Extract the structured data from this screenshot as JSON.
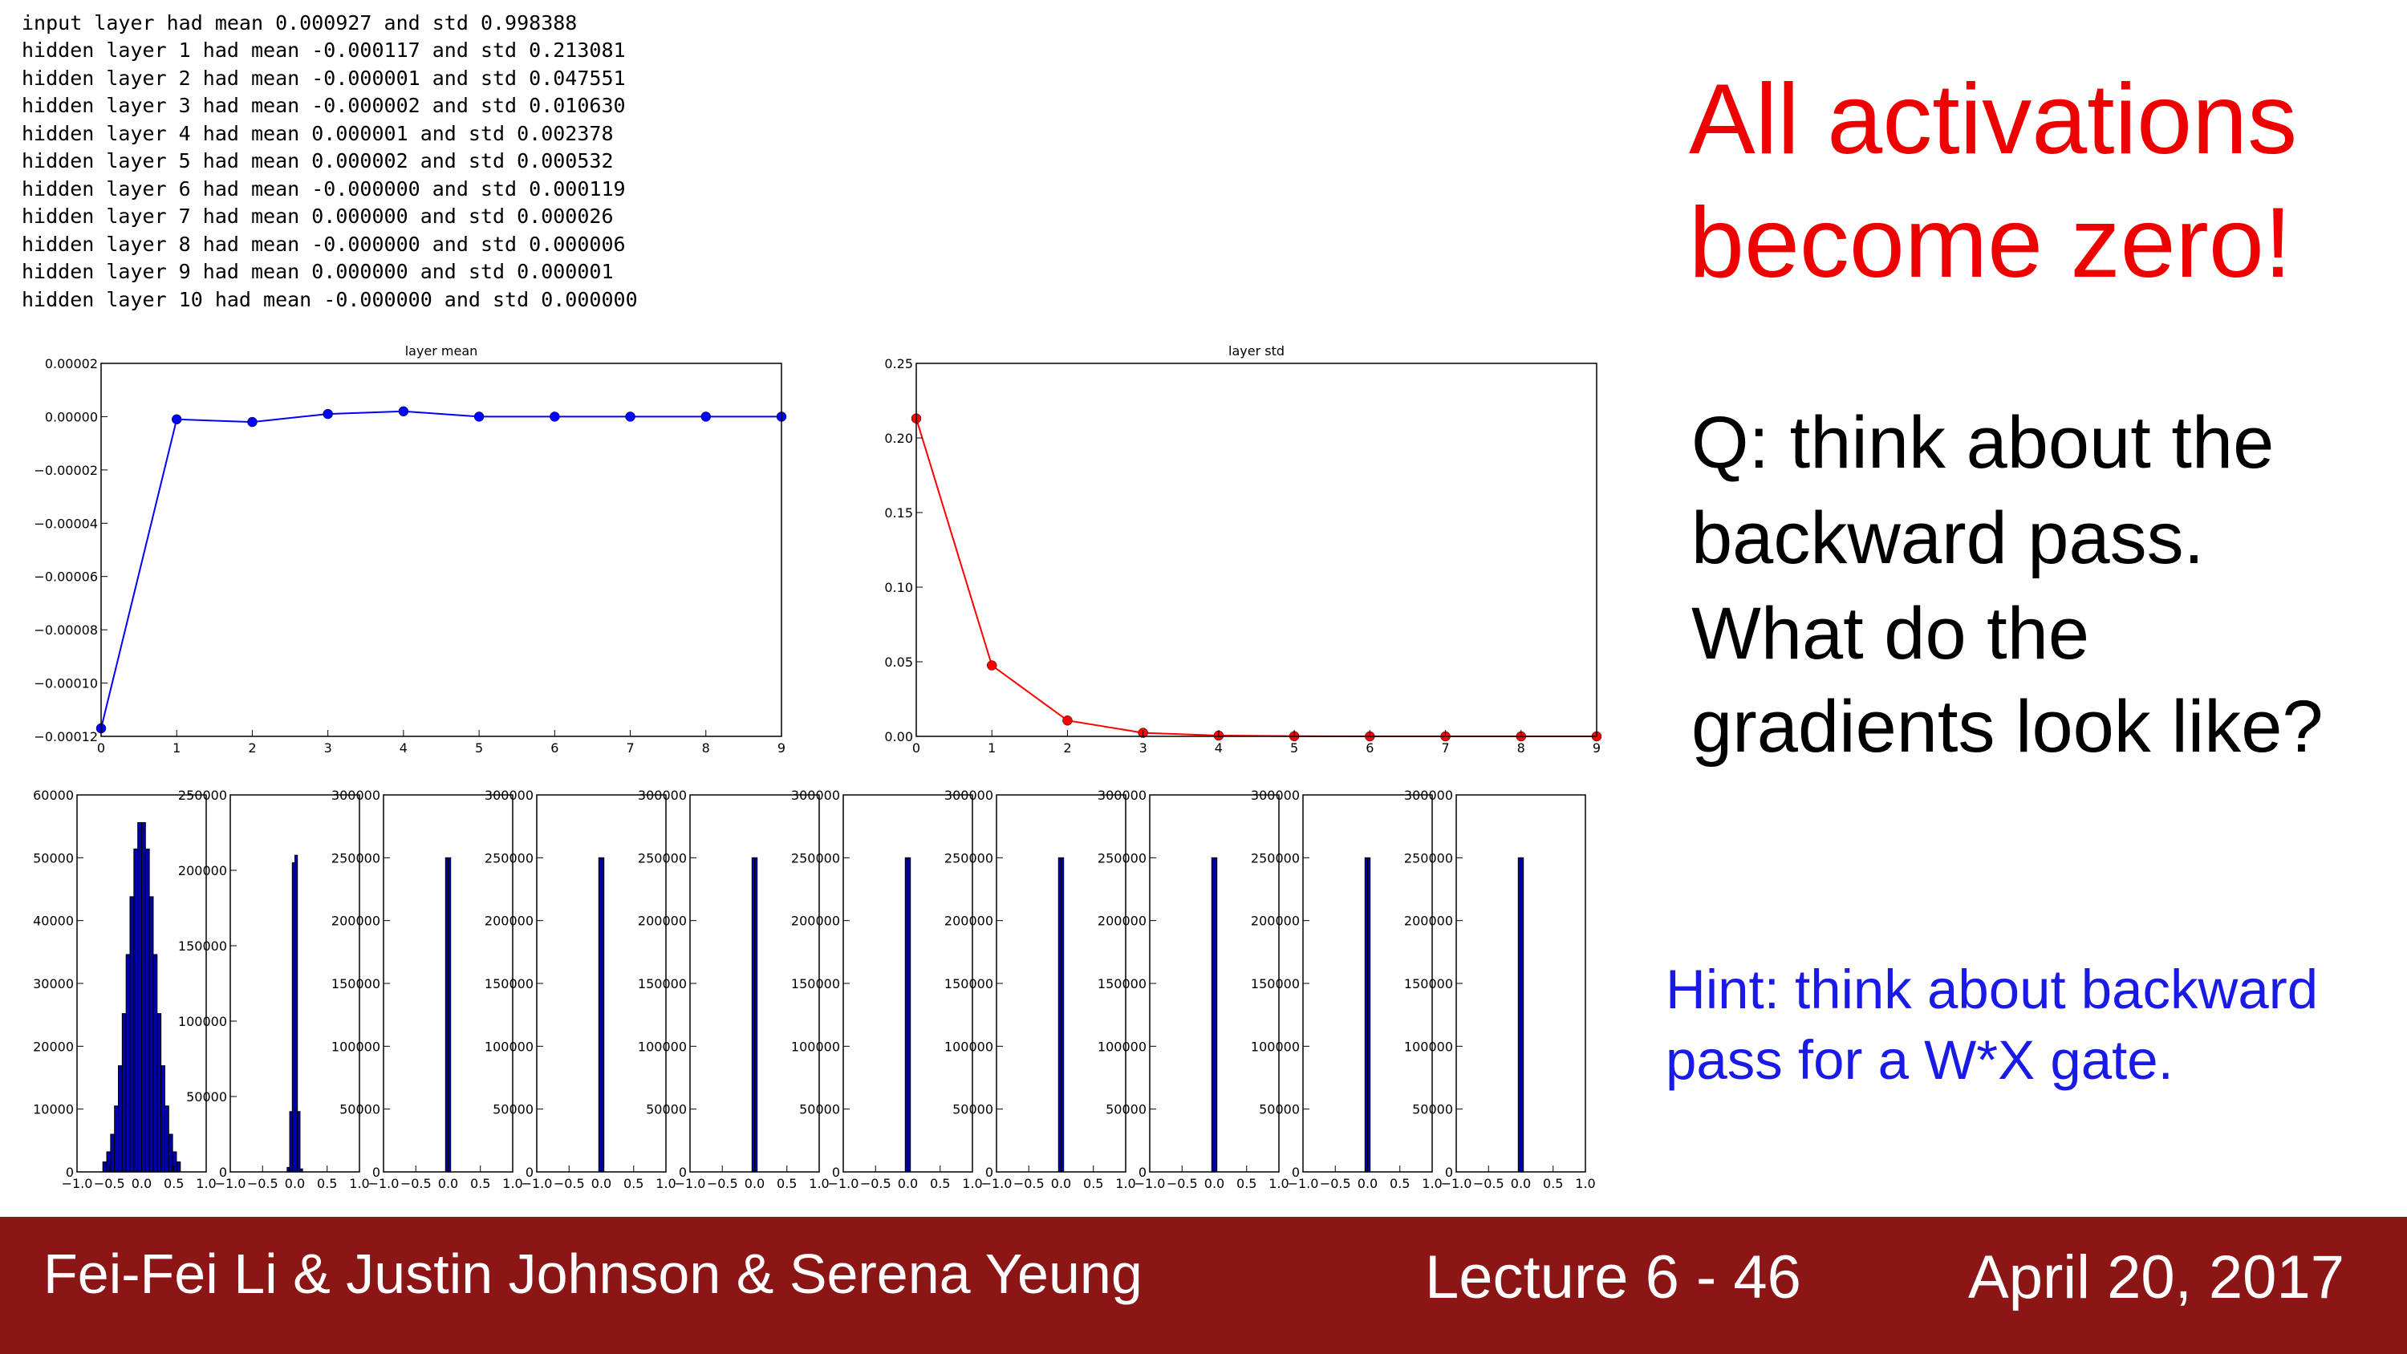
{
  "console": {
    "lines": [
      "input layer had mean 0.000927 and std 0.998388",
      "hidden layer 1 had mean -0.000117 and std 0.213081",
      "hidden layer 2 had mean -0.000001 and std 0.047551",
      "hidden layer 3 had mean -0.000002 and std 0.010630",
      "hidden layer 4 had mean 0.000001 and std 0.002378",
      "hidden layer 5 had mean 0.000002 and std 0.000532",
      "hidden layer 6 had mean -0.000000 and std 0.000119",
      "hidden layer 7 had mean 0.000000 and std 0.000026",
      "hidden layer 8 had mean -0.000000 and std 0.000006",
      "hidden layer 9 had mean 0.000000 and std 0.000001",
      "hidden layer 10 had mean -0.000000 and std 0.000000"
    ]
  },
  "slide": {
    "headline": [
      "All activations",
      "become zero!"
    ],
    "question": [
      "Q: think about the",
      "backward pass.",
      "What do the",
      "gradients look like?"
    ],
    "hint": [
      "Hint: think about backward",
      "pass for a W*X gate."
    ]
  },
  "footer": {
    "authors": "Fei-Fei Li & Justin Johnson & Serena Yeung",
    "lecture": "Lecture 6 - 46",
    "date": "April 20, 2017"
  },
  "chart_data": [
    {
      "type": "line",
      "title": "layer mean",
      "color": "#0000ff",
      "x": [
        0,
        1,
        2,
        3,
        4,
        5,
        6,
        7,
        8,
        9
      ],
      "values": [
        -0.000117,
        -1e-06,
        -2e-06,
        1e-06,
        2e-06,
        0,
        0,
        0,
        0,
        0
      ],
      "xlim": [
        0,
        9
      ],
      "xticks": [
        0,
        1,
        2,
        3,
        4,
        5,
        6,
        7,
        8,
        9
      ],
      "ylim": [
        -0.00012,
        2e-05
      ],
      "yticks": [
        {
          "value": -0.00012,
          "label": "−0.00012"
        },
        {
          "value": -0.0001,
          "label": "−0.00010"
        },
        {
          "value": -8e-05,
          "label": "−0.00008"
        },
        {
          "value": -6e-05,
          "label": "−0.00006"
        },
        {
          "value": -4e-05,
          "label": "−0.00004"
        },
        {
          "value": -2e-05,
          "label": "−0.00002"
        },
        {
          "value": 0,
          "label": "0.00000"
        },
        {
          "value": 2e-05,
          "label": "0.00002"
        }
      ]
    },
    {
      "type": "line",
      "title": "layer std",
      "color": "#ff0000",
      "x": [
        0,
        1,
        2,
        3,
        4,
        5,
        6,
        7,
        8,
        9
      ],
      "values": [
        0.213081,
        0.047551,
        0.01063,
        0.002378,
        0.000532,
        0.000119,
        2.6e-05,
        6e-06,
        1e-06,
        0
      ],
      "xlim": [
        0,
        9
      ],
      "xticks": [
        0,
        1,
        2,
        3,
        4,
        5,
        6,
        7,
        8,
        9
      ],
      "ylim": [
        0,
        0.25
      ],
      "yticks": [
        {
          "value": 0,
          "label": "0.00"
        },
        {
          "value": 0.05,
          "label": "0.05"
        },
        {
          "value": 0.1,
          "label": "0.10"
        },
        {
          "value": 0.15,
          "label": "0.15"
        },
        {
          "value": 0.2,
          "label": "0.20"
        },
        {
          "value": 0.25,
          "label": "0.25"
        }
      ]
    },
    {
      "type": "histogram",
      "color": "#0000aa",
      "bins": [
        -0.6,
        -0.54,
        -0.48,
        -0.42,
        -0.36,
        -0.3,
        -0.24,
        -0.18,
        -0.12,
        -0.06,
        0,
        0.06,
        0.12,
        0.18,
        0.24,
        0.3,
        0.36,
        0.42,
        0.48,
        0.54,
        0.6
      ],
      "values": [
        1600,
        3200,
        6000,
        10500,
        16900,
        25200,
        34600,
        43800,
        51400,
        55600,
        55600,
        51400,
        43800,
        34600,
        25200,
        16900,
        10500,
        6000,
        3200,
        1600
      ],
      "xlim": [
        -1,
        1
      ],
      "xticks": [
        {
          "value": -1,
          "label": "−1.0"
        },
        {
          "value": -0.5,
          "label": "−0.5"
        },
        {
          "value": 0,
          "label": "0.0"
        },
        {
          "value": 0.5,
          "label": "0.5"
        },
        {
          "value": 1,
          "label": "1.0"
        }
      ],
      "ylim": [
        0,
        60000
      ],
      "yticks": [
        0,
        10000,
        20000,
        30000,
        40000,
        50000,
        60000
      ]
    },
    {
      "type": "histogram",
      "color": "#0000aa",
      "bins": [
        -0.12,
        -0.08,
        -0.04,
        0,
        0.04,
        0.08,
        0.12
      ],
      "values": [
        3000,
        40000,
        205000,
        210000,
        40000,
        2000
      ],
      "xlim": [
        -1,
        1
      ],
      "xticks": [
        {
          "value": -1,
          "label": "−1.0"
        },
        {
          "value": -0.5,
          "label": "−0.5"
        },
        {
          "value": 0,
          "label": "0.0"
        },
        {
          "value": 0.5,
          "label": "0.5"
        },
        {
          "value": 1,
          "label": "1.0"
        }
      ],
      "ylim": [
        0,
        250000
      ],
      "yticks": [
        0,
        50000,
        100000,
        150000,
        200000,
        250000
      ]
    },
    {
      "type": "histogram",
      "color": "#0000aa",
      "bins": [
        -0.04,
        0,
        0.04
      ],
      "values": [
        250000,
        250000
      ],
      "xlim": [
        -1,
        1
      ],
      "xticks": [
        {
          "value": -1,
          "label": "−1.0"
        },
        {
          "value": -0.5,
          "label": "−0.5"
        },
        {
          "value": 0,
          "label": "0.0"
        },
        {
          "value": 0.5,
          "label": "0.5"
        },
        {
          "value": 1,
          "label": "1.0"
        }
      ],
      "ylim": [
        0,
        300000
      ],
      "yticks": [
        0,
        50000,
        100000,
        150000,
        200000,
        250000,
        300000
      ]
    },
    {
      "type": "histogram",
      "color": "#0000aa",
      "bins": [
        -0.04,
        0,
        0.04
      ],
      "values": [
        250000,
        250000
      ],
      "xlim": [
        -1,
        1
      ],
      "xticks": [
        {
          "value": -1,
          "label": "−1.0"
        },
        {
          "value": -0.5,
          "label": "−0.5"
        },
        {
          "value": 0,
          "label": "0.0"
        },
        {
          "value": 0.5,
          "label": "0.5"
        },
        {
          "value": 1,
          "label": "1.0"
        }
      ],
      "ylim": [
        0,
        300000
      ],
      "yticks": [
        0,
        50000,
        100000,
        150000,
        200000,
        250000,
        300000
      ]
    },
    {
      "type": "histogram",
      "color": "#0000aa",
      "bins": [
        -0.04,
        0,
        0.04
      ],
      "values": [
        250000,
        250000
      ],
      "xlim": [
        -1,
        1
      ],
      "xticks": [
        {
          "value": -1,
          "label": "−1.0"
        },
        {
          "value": -0.5,
          "label": "−0.5"
        },
        {
          "value": 0,
          "label": "0.0"
        },
        {
          "value": 0.5,
          "label": "0.5"
        },
        {
          "value": 1,
          "label": "1.0"
        }
      ],
      "ylim": [
        0,
        300000
      ],
      "yticks": [
        0,
        50000,
        100000,
        150000,
        200000,
        250000,
        300000
      ]
    },
    {
      "type": "histogram",
      "color": "#0000aa",
      "bins": [
        -0.04,
        0,
        0.04
      ],
      "values": [
        250000,
        250000
      ],
      "xlim": [
        -1,
        1
      ],
      "xticks": [
        {
          "value": -1,
          "label": "−1.0"
        },
        {
          "value": -0.5,
          "label": "−0.5"
        },
        {
          "value": 0,
          "label": "0.0"
        },
        {
          "value": 0.5,
          "label": "0.5"
        },
        {
          "value": 1,
          "label": "1.0"
        }
      ],
      "ylim": [
        0,
        300000
      ],
      "yticks": [
        0,
        50000,
        100000,
        150000,
        200000,
        250000,
        300000
      ]
    },
    {
      "type": "histogram",
      "color": "#0000aa",
      "bins": [
        -0.04,
        0,
        0.04
      ],
      "values": [
        250000,
        250000
      ],
      "xlim": [
        -1,
        1
      ],
      "xticks": [
        {
          "value": -1,
          "label": "−1.0"
        },
        {
          "value": -0.5,
          "label": "−0.5"
        },
        {
          "value": 0,
          "label": "0.0"
        },
        {
          "value": 0.5,
          "label": "0.5"
        },
        {
          "value": 1,
          "label": "1.0"
        }
      ],
      "ylim": [
        0,
        300000
      ],
      "yticks": [
        0,
        50000,
        100000,
        150000,
        200000,
        250000,
        300000
      ]
    },
    {
      "type": "histogram",
      "color": "#0000aa",
      "bins": [
        -0.04,
        0,
        0.04
      ],
      "values": [
        250000,
        250000
      ],
      "xlim": [
        -1,
        1
      ],
      "xticks": [
        {
          "value": -1,
          "label": "−1.0"
        },
        {
          "value": -0.5,
          "label": "−0.5"
        },
        {
          "value": 0,
          "label": "0.0"
        },
        {
          "value": 0.5,
          "label": "0.5"
        },
        {
          "value": 1,
          "label": "1.0"
        }
      ],
      "ylim": [
        0,
        300000
      ],
      "yticks": [
        0,
        50000,
        100000,
        150000,
        200000,
        250000,
        300000
      ]
    },
    {
      "type": "histogram",
      "color": "#0000aa",
      "bins": [
        -0.04,
        0,
        0.04
      ],
      "values": [
        250000,
        250000
      ],
      "xlim": [
        -1,
        1
      ],
      "xticks": [
        {
          "value": -1,
          "label": "−1.0"
        },
        {
          "value": -0.5,
          "label": "−0.5"
        },
        {
          "value": 0,
          "label": "0.0"
        },
        {
          "value": 0.5,
          "label": "0.5"
        },
        {
          "value": 1,
          "label": "1.0"
        }
      ],
      "ylim": [
        0,
        300000
      ],
      "yticks": [
        0,
        50000,
        100000,
        150000,
        200000,
        250000,
        300000
      ]
    },
    {
      "type": "histogram",
      "color": "#0000aa",
      "bins": [
        -0.04,
        0,
        0.04
      ],
      "values": [
        250000,
        250000
      ],
      "xlim": [
        -1,
        1
      ],
      "xticks": [
        {
          "value": -1,
          "label": "−1.0"
        },
        {
          "value": -0.5,
          "label": "−0.5"
        },
        {
          "value": 0,
          "label": "0.0"
        },
        {
          "value": 0.5,
          "label": "0.5"
        },
        {
          "value": 1,
          "label": "1.0"
        }
      ],
      "ylim": [
        0,
        300000
      ],
      "yticks": [
        0,
        50000,
        100000,
        150000,
        200000,
        250000,
        300000
      ]
    }
  ]
}
